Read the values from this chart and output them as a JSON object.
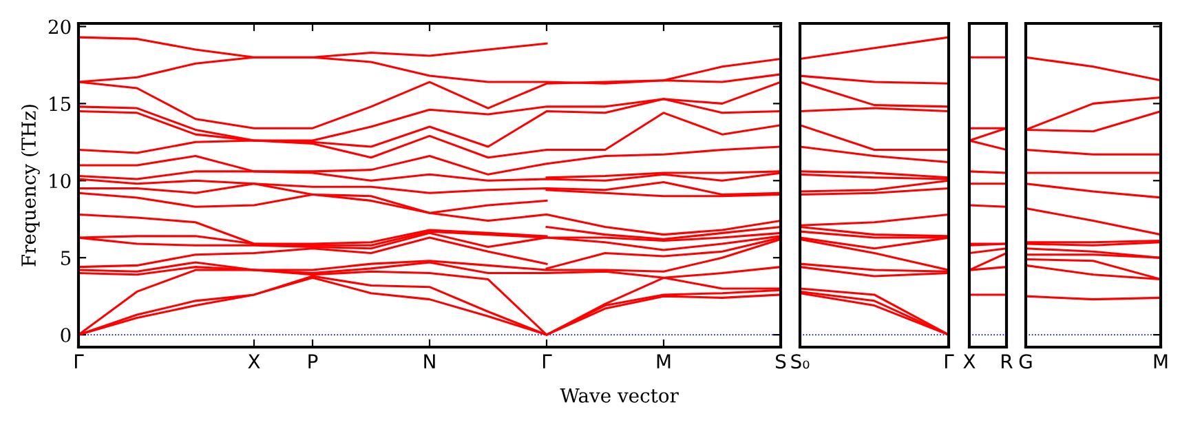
{
  "chart_data": [
    {
      "type": "line",
      "ylabel": "Frequency (THz)",
      "xlabel": "Wave vector",
      "categories": [
        "Γ",
        null,
        null,
        "X",
        "P",
        null,
        "N",
        null,
        "Γ",
        null,
        "M",
        null,
        "S"
      ],
      "ylim": [
        -0.8,
        20.2
      ],
      "yticks": [
        0,
        5,
        10,
        15,
        20
      ],
      "ref_lines": [
        {
          "axis": "y",
          "value": 0,
          "color": "#0000ff",
          "line_style": "dotted"
        }
      ],
      "series": [
        {
          "color": "#ff0000",
          "values": [
            0,
            1.1,
            1.9,
            2.6,
            3.7,
            2.7,
            2.3,
            1.2,
            0,
            1.7,
            2.5,
            2.4,
            2.6
          ]
        },
        {
          "color": "#ff0000",
          "values": [
            0,
            1.3,
            2.2,
            2.6,
            3.8,
            3.2,
            3.1,
            1.5,
            0,
            1.9,
            2.6,
            2.7,
            2.9
          ]
        },
        {
          "color": "#ff0000",
          "values": [
            0,
            2.8,
            4.2,
            4.2,
            3.9,
            4.1,
            4.0,
            3.6,
            0,
            2.0,
            3.7,
            3.0,
            3.0
          ]
        },
        {
          "color": "#ff0000",
          "values": [
            4.0,
            3.9,
            4.4,
            4.2,
            4.0,
            4.3,
            4.7,
            4.0,
            4.0,
            4.1,
            3.7,
            4.0,
            4.4
          ]
        },
        {
          "color": "#ff0000",
          "values": [
            4.2,
            4.1,
            4.7,
            4.2,
            4.2,
            4.6,
            4.8,
            4.5,
            4.2,
            4.2,
            4.1,
            5.0,
            6.2
          ]
        },
        {
          "color": "#ff0000",
          "values": [
            4.4,
            4.5,
            5.2,
            5.3,
            5.6,
            5.3,
            6.3,
            5.4,
            4.6,
            null,
            null,
            null,
            null
          ]
        },
        {
          "color": "#ff0000",
          "values": [
            null,
            null,
            null,
            null,
            null,
            null,
            null,
            null,
            4.3,
            5.3,
            5.1,
            5.4,
            6.3
          ]
        },
        {
          "color": "#ff0000",
          "values": [
            6.3,
            5.9,
            5.8,
            5.8,
            5.7,
            5.6,
            6.6,
            5.7,
            6.3,
            6.0,
            5.5,
            5.9,
            6.4
          ]
        },
        {
          "color": "#ff0000",
          "values": [
            6.3,
            6.4,
            6.4,
            5.9,
            5.8,
            5.8,
            6.7,
            6.5,
            6.3,
            6.3,
            6.1,
            6.3,
            6.6
          ]
        },
        {
          "color": "#ff0000",
          "values": [
            7.8,
            7.6,
            7.3,
            5.9,
            5.9,
            6.0,
            6.8,
            6.6,
            6.4,
            null,
            null,
            null,
            null
          ]
        },
        {
          "color": "#ff0000",
          "values": [
            null,
            null,
            null,
            null,
            null,
            null,
            null,
            null,
            7.0,
            6.5,
            6.2,
            6.6,
            7.0
          ]
        },
        {
          "color": "#ff0000",
          "values": [
            9.2,
            8.9,
            8.3,
            8.4,
            9.1,
            8.7,
            7.9,
            7.4,
            7.8,
            7.0,
            6.5,
            6.8,
            7.4
          ]
        },
        {
          "color": "#ff0000",
          "values": [
            9.5,
            9.5,
            9.2,
            9.8,
            9.1,
            9.0,
            7.9,
            8.4,
            8.7,
            null,
            null,
            null,
            null
          ]
        },
        {
          "color": "#ff0000",
          "values": [
            null,
            null,
            null,
            null,
            null,
            null,
            null,
            null,
            9.4,
            9.2,
            9.0,
            9.0,
            9.1
          ]
        },
        {
          "color": "#ff0000",
          "values": [
            10.1,
            9.8,
            10.0,
            9.8,
            9.6,
            9.6,
            9.2,
            9.4,
            9.5,
            9.4,
            9.9,
            9.1,
            9.2
          ]
        },
        {
          "color": "#ff0000",
          "values": [
            10.3,
            10.1,
            10.6,
            10.6,
            10.5,
            10.0,
            10.4,
            10.0,
            10.1,
            10.0,
            10.4,
            10.0,
            10.5
          ]
        },
        {
          "color": "#ff0000",
          "values": [
            null,
            null,
            null,
            null,
            null,
            null,
            null,
            null,
            10.2,
            10.3,
            10.5,
            10.5,
            10.6
          ]
        },
        {
          "color": "#ff0000",
          "values": [
            11.0,
            11.0,
            11.6,
            10.6,
            10.6,
            10.7,
            11.6,
            10.4,
            11.1,
            11.6,
            11.7,
            12.0,
            12.2
          ]
        },
        {
          "color": "#ff0000",
          "values": [
            12.0,
            11.8,
            12.5,
            12.6,
            12.4,
            11.5,
            12.9,
            11.5,
            12.0,
            12.0,
            14.4,
            13.0,
            13.6
          ]
        },
        {
          "color": "#ff0000",
          "values": [
            14.5,
            14.4,
            13.0,
            12.6,
            12.5,
            12.2,
            13.5,
            12.2,
            14.5,
            14.4,
            15.3,
            14.4,
            14.5
          ]
        },
        {
          "color": "#ff0000",
          "values": [
            14.8,
            14.7,
            13.3,
            12.6,
            12.6,
            13.5,
            14.6,
            14.3,
            14.8,
            14.8,
            15.3,
            15.0,
            16.4
          ]
        },
        {
          "color": "#ff0000",
          "values": [
            16.4,
            16.0,
            14.0,
            13.4,
            13.4,
            14.8,
            16.4,
            14.7,
            16.3,
            16.4,
            16.5,
            17.4,
            17.9
          ]
        },
        {
          "color": "#ff0000",
          "values": [
            16.4,
            16.7,
            17.6,
            18.0,
            18.0,
            17.7,
            16.8,
            16.4,
            16.4,
            16.3,
            16.5,
            16.4,
            16.9
          ]
        },
        {
          "color": "#ff0000",
          "values": [
            19.3,
            19.2,
            18.5,
            18.0,
            18.0,
            18.3,
            18.1,
            18.5,
            18.9,
            null,
            null,
            null,
            null
          ]
        }
      ]
    },
    {
      "type": "line",
      "tick_labels": "x",
      "categories": [
        "S₀",
        null,
        "Γ"
      ],
      "ylim": [
        -0.8,
        20.2
      ],
      "yticks": [
        0,
        5,
        10,
        15,
        20
      ],
      "ref_lines": [
        {
          "axis": "y",
          "value": 0,
          "color": "#0000ff",
          "line_style": "dotted"
        }
      ],
      "series": [
        {
          "color": "#ff0000",
          "values": [
            2.7,
            1.9,
            0
          ]
        },
        {
          "color": "#ff0000",
          "values": [
            2.8,
            2.2,
            0
          ]
        },
        {
          "color": "#ff0000",
          "values": [
            3.0,
            2.6,
            0
          ]
        },
        {
          "color": "#ff0000",
          "values": [
            4.4,
            3.8,
            4.0
          ]
        },
        {
          "color": "#ff0000",
          "values": [
            4.6,
            4.2,
            4.1
          ]
        },
        {
          "color": "#ff0000",
          "values": [
            6.2,
            5.3,
            4.2
          ]
        },
        {
          "color": "#ff0000",
          "values": [
            6.3,
            5.6,
            6.3
          ]
        },
        {
          "color": "#ff0000",
          "values": [
            6.7,
            6.3,
            6.3
          ]
        },
        {
          "color": "#ff0000",
          "values": [
            7.0,
            6.5,
            6.4
          ]
        },
        {
          "color": "#ff0000",
          "values": [
            7.1,
            7.3,
            7.8
          ]
        },
        {
          "color": "#ff0000",
          "values": [
            9.1,
            9.2,
            9.5
          ]
        },
        {
          "color": "#ff0000",
          "values": [
            9.3,
            9.4,
            10.0
          ]
        },
        {
          "color": "#ff0000",
          "values": [
            10.4,
            10.2,
            10.1
          ]
        },
        {
          "color": "#ff0000",
          "values": [
            10.6,
            10.5,
            10.2
          ]
        },
        {
          "color": "#ff0000",
          "values": [
            12.2,
            11.6,
            11.2
          ]
        },
        {
          "color": "#ff0000",
          "values": [
            13.6,
            12.0,
            12.0
          ]
        },
        {
          "color": "#ff0000",
          "values": [
            14.5,
            14.7,
            14.5
          ]
        },
        {
          "color": "#ff0000",
          "values": [
            16.4,
            14.9,
            14.8
          ]
        },
        {
          "color": "#ff0000",
          "values": [
            16.8,
            16.4,
            16.3
          ]
        },
        {
          "color": "#ff0000",
          "values": [
            17.9,
            18.6,
            19.3
          ]
        }
      ]
    },
    {
      "type": "line",
      "tick_labels": "x",
      "categories": [
        "X",
        "R"
      ],
      "ylim": [
        -0.8,
        20.2
      ],
      "yticks": [
        0,
        5,
        10,
        15,
        20
      ],
      "ref_lines": [
        {
          "axis": "y",
          "value": 0,
          "color": "#0000ff",
          "line_style": "dotted"
        }
      ],
      "series": [
        {
          "color": "#ff0000",
          "values": [
            2.6,
            2.6
          ]
        },
        {
          "color": "#ff0000",
          "values": [
            4.2,
            4.4
          ]
        },
        {
          "color": "#ff0000",
          "values": [
            4.2,
            5.3
          ]
        },
        {
          "color": "#ff0000",
          "values": [
            5.3,
            5.6
          ]
        },
        {
          "color": "#ff0000",
          "values": [
            5.8,
            5.9
          ]
        },
        {
          "color": "#ff0000",
          "values": [
            5.9,
            5.9
          ]
        },
        {
          "color": "#ff0000",
          "values": [
            8.4,
            8.3
          ]
        },
        {
          "color": "#ff0000",
          "values": [
            9.8,
            9.8
          ]
        },
        {
          "color": "#ff0000",
          "values": [
            10.6,
            10.5
          ]
        },
        {
          "color": "#ff0000",
          "values": [
            12.6,
            12.0
          ]
        },
        {
          "color": "#ff0000",
          "values": [
            12.6,
            13.4
          ]
        },
        {
          "color": "#ff0000",
          "values": [
            13.4,
            13.4
          ]
        },
        {
          "color": "#ff0000",
          "values": [
            18.0,
            18.0
          ]
        }
      ]
    },
    {
      "type": "line",
      "tick_labels": "x",
      "categories": [
        "G",
        null,
        "M"
      ],
      "ylim": [
        -0.8,
        20.2
      ],
      "yticks": [
        0,
        5,
        10,
        15,
        20
      ],
      "ref_lines": [
        {
          "axis": "y",
          "value": 0,
          "color": "#0000ff",
          "line_style": "dotted"
        }
      ],
      "series": [
        {
          "color": "#ff0000",
          "values": [
            2.5,
            2.3,
            2.4
          ]
        },
        {
          "color": "#ff0000",
          "values": [
            4.5,
            3.9,
            3.6
          ]
        },
        {
          "color": "#ff0000",
          "values": [
            4.9,
            4.8,
            3.6
          ]
        },
        {
          "color": "#ff0000",
          "values": [
            5.2,
            5.2,
            5.0
          ]
        },
        {
          "color": "#ff0000",
          "values": [
            5.6,
            5.4,
            5.0
          ]
        },
        {
          "color": "#ff0000",
          "values": [
            5.9,
            5.8,
            6.0
          ]
        },
        {
          "color": "#ff0000",
          "values": [
            6.0,
            6.0,
            6.1
          ]
        },
        {
          "color": "#ff0000",
          "values": [
            8.2,
            7.4,
            6.5
          ]
        },
        {
          "color": "#ff0000",
          "values": [
            9.8,
            9.3,
            8.9
          ]
        },
        {
          "color": "#ff0000",
          "values": [
            10.5,
            10.5,
            10.5
          ]
        },
        {
          "color": "#ff0000",
          "values": [
            12.0,
            11.7,
            11.7
          ]
        },
        {
          "color": "#ff0000",
          "values": [
            13.3,
            13.2,
            14.5
          ]
        },
        {
          "color": "#ff0000",
          "values": [
            13.3,
            15.0,
            15.4
          ]
        },
        {
          "color": "#ff0000",
          "values": [
            18.0,
            17.4,
            16.5
          ]
        }
      ]
    }
  ]
}
